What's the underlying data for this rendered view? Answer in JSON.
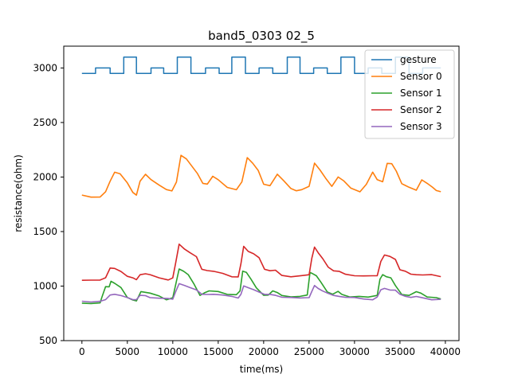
{
  "chart_data": {
    "type": "line",
    "title": "band5_0303 02_5",
    "xlabel": "time(ms)",
    "ylabel": "resistance(ohm)",
    "xlim": [
      -2000,
      41500
    ],
    "ylim": [
      500,
      3200
    ],
    "xticks": [
      0,
      5000,
      10000,
      15000,
      20000,
      25000,
      30000,
      35000,
      40000
    ],
    "yticks": [
      500,
      1000,
      1500,
      2000,
      2500,
      3000
    ],
    "grid": false,
    "legend_position": "top-right",
    "series": [
      {
        "name": "gesture",
        "color": "#1f77b4",
        "step": true,
        "x": [
          0,
          1500,
          1500,
          3100,
          3100,
          4600,
          4600,
          6000,
          6000,
          7600,
          7600,
          9000,
          9000,
          10500,
          10500,
          12000,
          12000,
          13600,
          13600,
          15100,
          15100,
          16500,
          16500,
          18000,
          18000,
          19500,
          19500,
          21000,
          21000,
          22600,
          22600,
          24000,
          24000,
          25500,
          25500,
          27000,
          27000,
          28500,
          28500,
          30000,
          30000,
          31500,
          31500,
          33000,
          33000,
          34500,
          34500,
          36000,
          36000,
          37500,
          37500,
          39500
        ],
        "y": [
          2950,
          2950,
          3000,
          3000,
          2950,
          2950,
          3100,
          3100,
          2950,
          2950,
          3000,
          3000,
          2950,
          2950,
          3100,
          3100,
          2950,
          2950,
          3000,
          3000,
          2950,
          2950,
          3100,
          3100,
          2950,
          2950,
          3000,
          3000,
          2950,
          2950,
          3100,
          3100,
          2950,
          2950,
          3000,
          3000,
          2950,
          2950,
          3100,
          3100,
          2950,
          2950,
          3000,
          3000,
          2950,
          2950,
          3100,
          3100,
          2950,
          2950,
          3000,
          3000
        ]
      },
      {
        "name": "Sensor 0",
        "color": "#ff7f0e",
        "x": [
          0,
          1000,
          2000,
          2600,
          3100,
          3600,
          4200,
          5000,
          5600,
          6000,
          6400,
          7000,
          7600,
          8500,
          9300,
          9900,
          10400,
          10900,
          11500,
          12100,
          12700,
          13300,
          13800,
          14400,
          15000,
          16000,
          17000,
          17600,
          18200,
          18800,
          19400,
          20000,
          20700,
          21500,
          22200,
          23000,
          23600,
          24200,
          25000,
          25600,
          26200,
          26800,
          27500,
          28200,
          28800,
          29600,
          30600,
          31300,
          32000,
          32500,
          33100,
          33600,
          34100,
          34600,
          35200,
          36000,
          36800,
          37400,
          38000,
          38600,
          39000,
          39500
        ],
        "y": [
          1830,
          1820,
          1820,
          1860,
          1960,
          2050,
          2030,
          1940,
          1860,
          1840,
          1960,
          2020,
          1980,
          1930,
          1880,
          1870,
          1960,
          2200,
          2160,
          2100,
          2040,
          1940,
          1930,
          2010,
          1980,
          1900,
          1880,
          1960,
          2180,
          2120,
          2060,
          1940,
          1920,
          2020,
          1970,
          1900,
          1870,
          1880,
          1920,
          2130,
          2060,
          1990,
          1920,
          2000,
          1960,
          1900,
          1870,
          1930,
          2040,
          1980,
          1960,
          2120,
          2120,
          2060,
          1940,
          1900,
          1880,
          1980,
          1940,
          1900,
          1880,
          1870
        ]
      },
      {
        "name": "Sensor 1",
        "color": "#2ca02c",
        "x": [
          0,
          1000,
          2000,
          2200,
          2600,
          3000,
          3200,
          3600,
          4300,
          5000,
          5600,
          6000,
          6500,
          7500,
          8500,
          9300,
          10000,
          10300,
          10700,
          11200,
          11700,
          12300,
          13000,
          13500,
          14000,
          15000,
          16000,
          17000,
          17400,
          17700,
          18100,
          18600,
          19200,
          20000,
          20500,
          21000,
          21500,
          22000,
          23000,
          24000,
          24800,
          25100,
          25400,
          25800,
          26300,
          27000,
          27600,
          28200,
          28600,
          29500,
          30500,
          31500,
          32500,
          32800,
          33100,
          33500,
          34000,
          34500,
          35200,
          36000,
          36800,
          37300,
          38000,
          39000,
          39500
        ],
        "y": [
          850,
          840,
          840,
          900,
          1000,
          990,
          1040,
          1030,
          990,
          890,
          870,
          870,
          950,
          930,
          910,
          880,
          890,
          1000,
          1160,
          1140,
          1100,
          1020,
          920,
          940,
          950,
          950,
          930,
          920,
          950,
          1140,
          1130,
          1060,
          980,
          920,
          920,
          950,
          940,
          920,
          900,
          900,
          920,
          1130,
          1110,
          1090,
          1040,
          950,
          920,
          950,
          930,
          900,
          900,
          900,
          920,
          1060,
          1100,
          1090,
          1080,
          1000,
          920,
          920,
          950,
          930,
          900,
          900,
          880
        ]
      },
      {
        "name": "Sensor 2",
        "color": "#d62728",
        "x": [
          0,
          1000,
          2000,
          2600,
          3100,
          3600,
          4300,
          5000,
          5600,
          6000,
          6400,
          7000,
          7500,
          8500,
          9500,
          10000,
          10300,
          10700,
          11300,
          11900,
          12600,
          13200,
          13800,
          14500,
          15500,
          16500,
          17200,
          17500,
          17800,
          18300,
          18900,
          19500,
          20100,
          20700,
          21300,
          22000,
          23000,
          24000,
          25000,
          25300,
          25600,
          26000,
          26500,
          27100,
          27700,
          28300,
          29000,
          30000,
          31000,
          32000,
          32500,
          32900,
          33300,
          33900,
          34500,
          35000,
          35600,
          36200,
          36800,
          37500,
          38500,
          39500
        ],
        "y": [
          1050,
          1050,
          1060,
          1080,
          1160,
          1160,
          1140,
          1090,
          1070,
          1060,
          1110,
          1110,
          1100,
          1080,
          1060,
          1070,
          1200,
          1390,
          1340,
          1300,
          1270,
          1160,
          1140,
          1130,
          1120,
          1090,
          1080,
          1200,
          1370,
          1320,
          1290,
          1260,
          1160,
          1140,
          1140,
          1100,
          1090,
          1090,
          1100,
          1260,
          1360,
          1300,
          1250,
          1180,
          1140,
          1130,
          1110,
          1100,
          1090,
          1090,
          1100,
          1230,
          1280,
          1270,
          1250,
          1150,
          1130,
          1110,
          1110,
          1100,
          1100,
          1090
        ]
      },
      {
        "name": "Sensor 3",
        "color": "#9467bd",
        "x": [
          0,
          1000,
          2000,
          2600,
          3100,
          3600,
          4300,
          5000,
          5600,
          6000,
          6400,
          7000,
          7500,
          8500,
          9500,
          10000,
          10300,
          10700,
          11300,
          11900,
          12600,
          13200,
          13800,
          14500,
          15500,
          16500,
          17200,
          17500,
          17800,
          18300,
          18900,
          19500,
          20100,
          20700,
          21300,
          22000,
          23000,
          24000,
          25000,
          25300,
          25600,
          26000,
          26500,
          27100,
          27700,
          28300,
          29000,
          30000,
          31000,
          32000,
          32500,
          32900,
          33300,
          33900,
          34500,
          35000,
          35600,
          36200,
          36800,
          37500,
          38500,
          39500
        ],
        "y": [
          860,
          860,
          860,
          870,
          920,
          930,
          910,
          890,
          880,
          880,
          910,
          910,
          900,
          890,
          880,
          880,
          950,
          1020,
          1000,
          990,
          970,
          920,
          920,
          930,
          920,
          900,
          890,
          930,
          1000,
          980,
          970,
          950,
          920,
          920,
          920,
          900,
          890,
          890,
          900,
          950,
          1000,
          980,
          960,
          930,
          910,
          910,
          900,
          890,
          880,
          880,
          900,
          960,
          980,
          970,
          960,
          920,
          910,
          900,
          900,
          890,
          880,
          880
        ]
      }
    ]
  }
}
